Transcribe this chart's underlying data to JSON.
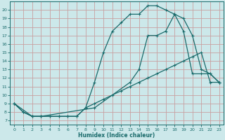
{
  "xlabel": "Humidex (Indice chaleur)",
  "bg_color": "#cce8ea",
  "line_color": "#1a6b6b",
  "grid_color": "#c8a0a0",
  "xlim": [
    -0.5,
    23.5
  ],
  "ylim": [
    6.5,
    21.0
  ],
  "xticks": [
    0,
    1,
    2,
    3,
    4,
    5,
    6,
    7,
    8,
    9,
    10,
    11,
    12,
    13,
    14,
    15,
    16,
    17,
    18,
    19,
    20,
    21,
    22,
    23
  ],
  "yticks": [
    7,
    8,
    9,
    10,
    11,
    12,
    13,
    14,
    15,
    16,
    17,
    18,
    19,
    20
  ],
  "line1_x": [
    0,
    1,
    2,
    3,
    4,
    5,
    6,
    7,
    8,
    9,
    10,
    11,
    12,
    13,
    14,
    15,
    16,
    17,
    18,
    19,
    20,
    21,
    22,
    23
  ],
  "line1_y": [
    9,
    8,
    7.5,
    7.5,
    7.5,
    7.5,
    7.5,
    7.5,
    8.5,
    11.5,
    15,
    17.5,
    18.5,
    19.5,
    19.5,
    20.5,
    20.5,
    20,
    19.5,
    19,
    17,
    13,
    12.5,
    11.5
  ],
  "line2_x": [
    0,
    1,
    2,
    3,
    4,
    5,
    6,
    7,
    8,
    9,
    10,
    11,
    12,
    13,
    14,
    15,
    16,
    17,
    18,
    19,
    20,
    21,
    22,
    23
  ],
  "line2_y": [
    9,
    8,
    7.5,
    7.5,
    7.5,
    7.5,
    7.5,
    7.5,
    8.5,
    9.0,
    9.5,
    10.0,
    10.5,
    11.0,
    11.5,
    12.0,
    12.5,
    13.0,
    13.5,
    14.0,
    14.5,
    15.0,
    11.5,
    11.5
  ],
  "line3_x": [
    0,
    2,
    3,
    9,
    13,
    14,
    15,
    16,
    17,
    18,
    19,
    20,
    21,
    22,
    23
  ],
  "line3_y": [
    9,
    7.5,
    7.5,
    8.5,
    11.5,
    13.0,
    17.0,
    17.0,
    17.5,
    19.5,
    17.5,
    12.5,
    12.5,
    12.5,
    11.5
  ]
}
